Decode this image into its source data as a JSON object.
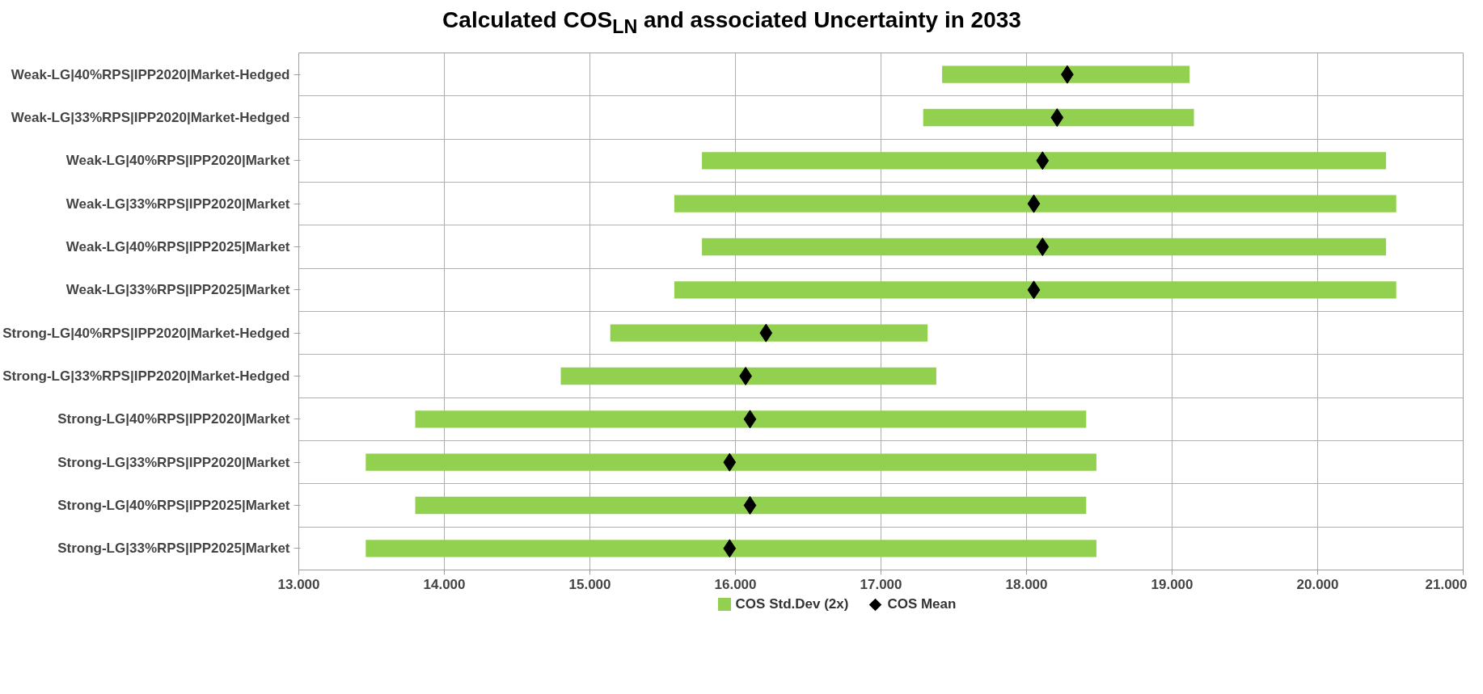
{
  "chart_data": {
    "type": "bar",
    "orientation": "horizontal",
    "title": "Calculated COS$_{LN}$ and associated Uncertainty in 2033",
    "categories": [
      "Weak-LG|40%RPS|IPP2020|Market-Hedged",
      "Weak-LG|33%RPS|IPP2020|Market-Hedged",
      "Weak-LG|40%RPS|IPP2020|Market",
      "Weak-LG|33%RPS|IPP2020|Market",
      "Weak-LG|40%RPS|IPP2025|Market",
      "Weak-LG|33%RPS|IPP2025|Market",
      "Strong-LG|40%RPS|IPP2020|Market-Hedged",
      "Strong-LG|33%RPS|IPP2020|Market-Hedged",
      "Strong-LG|40%RPS|IPP2020|Market",
      "Strong-LG|33%RPS|IPP2020|Market",
      "Strong-LG|40%RPS|IPP2025|Market",
      "Strong-LG|33%RPS|IPP2025|Market"
    ],
    "series": [
      {
        "name": "COS Std.Dev (2x)",
        "color": "#92d050",
        "base": [
          17.42,
          17.29,
          15.77,
          15.58,
          15.77,
          15.58,
          15.14,
          14.8,
          13.8,
          13.46,
          13.8,
          13.46
        ],
        "values": [
          1.7,
          1.86,
          4.7,
          4.96,
          4.7,
          4.96,
          2.18,
          2.58,
          4.61,
          5.02,
          4.61,
          5.02
        ]
      },
      {
        "name": "COS Mean",
        "type": "scatter",
        "marker": "diamond",
        "color": "#000000",
        "values": [
          18.28,
          18.21,
          18.11,
          18.05,
          18.11,
          18.05,
          16.21,
          16.07,
          16.1,
          15.96,
          16.1,
          15.96
        ]
      }
    ],
    "xlim": [
      13,
      21
    ],
    "xticks": [
      {
        "value": 13,
        "label": "13.000"
      },
      {
        "value": 14,
        "label": "14.000"
      },
      {
        "value": 15,
        "label": "15.000"
      },
      {
        "value": 16,
        "label": "16.000"
      },
      {
        "value": 17,
        "label": "17.000"
      },
      {
        "value": 18,
        "label": "18.000"
      },
      {
        "value": 19,
        "label": "19.000"
      },
      {
        "value": 20,
        "label": "20.000"
      },
      {
        "value": 21,
        "label": "21.000"
      }
    ],
    "grid": true,
    "legend": "bottom"
  }
}
